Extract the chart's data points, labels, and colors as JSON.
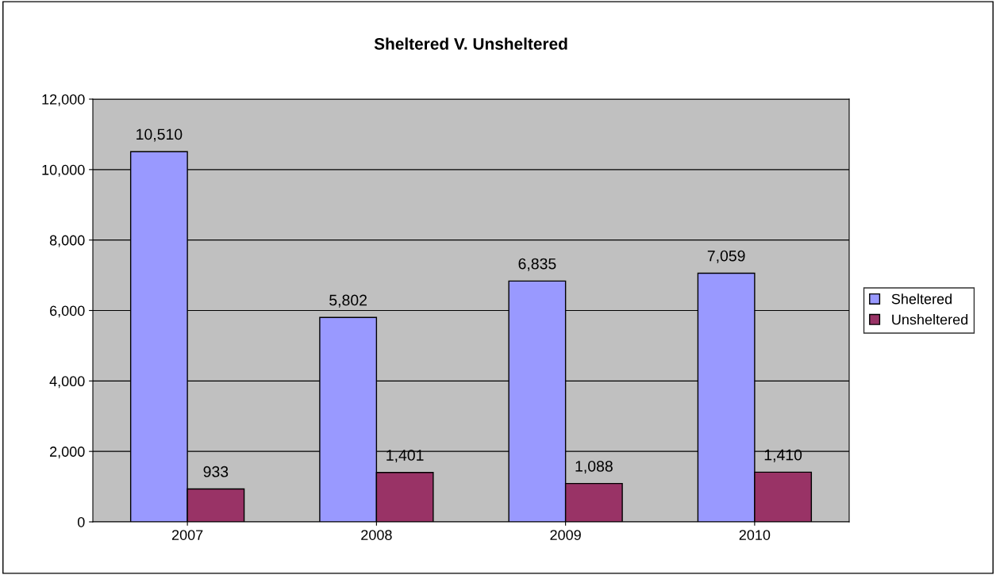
{
  "chart_data": {
    "type": "bar",
    "title": "Sheltered V. Unsheltered",
    "categories": [
      "2007",
      "2008",
      "2009",
      "2010"
    ],
    "series": [
      {
        "name": "Sheltered",
        "color": "#9999ff",
        "values": [
          10510,
          5802,
          6835,
          7059
        ],
        "value_labels": [
          "10,510",
          "5,802",
          "6,835",
          "7,059"
        ]
      },
      {
        "name": "Unsheltered",
        "color": "#993366",
        "values": [
          933,
          1401,
          1088,
          1410
        ],
        "value_labels": [
          "933",
          "1,401",
          "1,088",
          "1,410"
        ]
      }
    ],
    "ylim": [
      0,
      12000
    ],
    "yticks": [
      {
        "value": 0,
        "label": "0"
      },
      {
        "value": 2000,
        "label": "2,000"
      },
      {
        "value": 4000,
        "label": "4,000"
      },
      {
        "value": 6000,
        "label": "6,000"
      },
      {
        "value": 8000,
        "label": "8,000"
      },
      {
        "value": 10000,
        "label": "10,000"
      },
      {
        "value": 12000,
        "label": "12,000"
      }
    ],
    "grid": "y",
    "legend": "right"
  }
}
